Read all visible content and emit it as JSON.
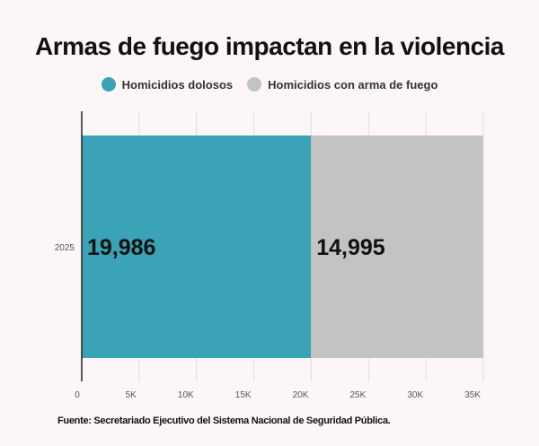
{
  "chart_data": {
    "type": "bar",
    "orientation": "horizontal",
    "stacked": true,
    "title": "Armas de fuego impactan en la violencia",
    "categories": [
      "2025"
    ],
    "series": [
      {
        "name": "Homicidios dolosos",
        "values": [
          19986
        ],
        "value_labels": [
          "19,986"
        ],
        "color": "#3aa3b5"
      },
      {
        "name": "Homicidios con arma de fuego",
        "values": [
          14995
        ],
        "value_labels": [
          "14,995"
        ],
        "color": "#c4c3c3"
      }
    ],
    "xlim": [
      0,
      35000
    ],
    "xticks": [
      0,
      5000,
      10000,
      15000,
      20000,
      25000,
      30000,
      35000
    ],
    "xtick_labels": [
      "0",
      "5K",
      "10K",
      "15K",
      "20K",
      "25K",
      "30K",
      "35K"
    ],
    "grid": true,
    "legend_position": "top"
  },
  "footer": "Fuente: Secretariado Ejecutivo del Sistema Nacional de Seguridad Pública."
}
